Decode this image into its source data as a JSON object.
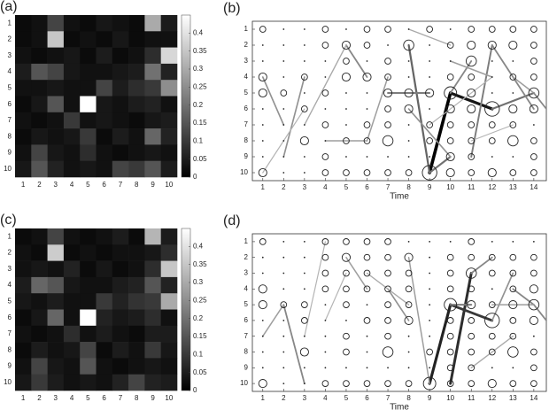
{
  "chart_data": [
    {
      "type": "heatmap",
      "panel_label": "(a)",
      "categories": [
        1,
        2,
        3,
        4,
        5,
        6,
        7,
        8,
        9,
        10
      ],
      "rows": [
        1,
        2,
        3,
        4,
        5,
        6,
        7,
        8,
        9,
        10
      ],
      "values": [
        [
          0.02,
          0.03,
          0.12,
          0.03,
          0.02,
          0.04,
          0.03,
          0.02,
          0.3,
          0.05
        ],
        [
          0.02,
          0.03,
          0.35,
          0.02,
          0.03,
          0.02,
          0.04,
          0.02,
          0.03,
          0.03
        ],
        [
          0.03,
          0.02,
          0.03,
          0.04,
          0.02,
          0.05,
          0.02,
          0.03,
          0.08,
          0.38
        ],
        [
          0.05,
          0.15,
          0.12,
          0.04,
          0.03,
          0.03,
          0.04,
          0.05,
          0.2,
          0.06
        ],
        [
          0.03,
          0.03,
          0.04,
          0.03,
          0.03,
          0.12,
          0.05,
          0.08,
          0.1,
          0.25
        ],
        [
          0.02,
          0.04,
          0.15,
          0.03,
          0.45,
          0.04,
          0.03,
          0.05,
          0.06,
          0.03
        ],
        [
          0.03,
          0.02,
          0.03,
          0.1,
          0.03,
          0.04,
          0.03,
          0.02,
          0.04,
          0.05
        ],
        [
          0.02,
          0.04,
          0.03,
          0.04,
          0.1,
          0.02,
          0.05,
          0.03,
          0.18,
          0.06
        ],
        [
          0.03,
          0.12,
          0.04,
          0.03,
          0.08,
          0.03,
          0.02,
          0.03,
          0.04,
          0.03
        ],
        [
          0.04,
          0.15,
          0.06,
          0.03,
          0.04,
          0.03,
          0.12,
          0.1,
          0.15,
          0.05
        ]
      ],
      "zlim": [
        0,
        0.45
      ],
      "zticks": [
        0,
        0.05,
        0.1,
        0.15,
        0.2,
        0.25,
        0.3,
        0.35,
        0.4
      ]
    },
    {
      "type": "network",
      "panel_label": "(b)",
      "xlabel": "Time",
      "xlim": [
        0.5,
        14.6
      ],
      "ylim": [
        0.5,
        10.5
      ],
      "y_inverted": true,
      "xticks": [
        1,
        2,
        3,
        4,
        5,
        6,
        7,
        8,
        9,
        10,
        11,
        12,
        13,
        14
      ],
      "yticks": [
        1,
        2,
        3,
        4,
        5,
        6,
        7,
        8,
        9,
        10
      ],
      "sizes": [
        [
          2,
          0,
          0,
          2,
          0,
          2,
          2,
          0,
          2,
          0,
          2,
          2,
          2,
          2
        ],
        [
          0,
          0,
          0,
          2,
          3,
          2,
          0,
          4,
          0,
          2,
          3,
          3,
          3,
          2
        ],
        [
          0,
          0,
          0,
          0,
          2,
          0,
          2,
          0,
          0,
          0,
          4,
          0,
          0,
          2
        ],
        [
          3,
          0,
          2,
          0,
          3,
          3,
          2,
          0,
          0,
          2,
          2,
          0,
          2,
          2
        ],
        [
          3,
          2,
          0,
          2,
          0,
          0,
          3,
          3,
          3,
          5,
          3,
          0,
          0,
          4
        ],
        [
          0,
          0,
          2,
          0,
          0,
          0,
          2,
          3,
          0,
          3,
          3,
          6,
          3,
          3
        ],
        [
          0,
          0,
          0,
          2,
          0,
          2,
          2,
          0,
          2,
          2,
          2,
          2,
          2,
          0
        ],
        [
          0,
          0,
          3,
          0,
          2,
          2,
          4,
          0,
          2,
          2,
          2,
          2,
          4,
          2
        ],
        [
          0,
          0,
          0,
          2,
          0,
          0,
          0,
          0,
          0,
          3,
          2,
          0,
          0,
          2
        ],
        [
          3,
          0,
          0,
          2,
          2,
          2,
          2,
          2,
          6,
          3,
          2,
          3,
          2,
          2
        ]
      ],
      "edges": [
        {
          "x": [
            9,
            10
          ],
          "y": [
            10,
            5
          ],
          "weight": 1
        },
        {
          "x": [
            10,
            12
          ],
          "y": [
            5,
            6
          ],
          "weight": 0.9
        },
        {
          "x": [
            8,
            9
          ],
          "y": [
            2,
            10
          ],
          "weight": 0.55
        },
        {
          "x": [
            9,
            10
          ],
          "y": [
            10,
            9
          ],
          "weight": 0.5
        },
        {
          "x": [
            7,
            9
          ],
          "y": [
            5,
            5
          ],
          "weight": 0.45
        },
        {
          "x": [
            12,
            14
          ],
          "y": [
            6,
            5
          ],
          "weight": 0.5
        },
        {
          "x": [
            10,
            11
          ],
          "y": [
            5,
            3
          ],
          "weight": 0.4
        },
        {
          "x": [
            11,
            12
          ],
          "y": [
            9,
            2
          ],
          "weight": 0.45
        },
        {
          "x": [
            1,
            2
          ],
          "y": [
            4,
            7
          ],
          "weight": 0.35
        },
        {
          "x": [
            2,
            3
          ],
          "y": [
            9,
            4
          ],
          "weight": 0.35
        },
        {
          "x": [
            5,
            6
          ],
          "y": [
            2,
            4
          ],
          "weight": 0.4
        },
        {
          "x": [
            8,
            10
          ],
          "y": [
            6,
            9
          ],
          "weight": 0.35
        },
        {
          "x": [
            12,
            14
          ],
          "y": [
            2,
            6
          ],
          "weight": 0.4
        },
        {
          "x": [
            6,
            7
          ],
          "y": [
            8,
            4
          ],
          "weight": 0.3
        },
        {
          "x": [
            3,
            5
          ],
          "y": [
            7,
            2
          ],
          "weight": 0.25
        },
        {
          "x": [
            10,
            12
          ],
          "y": [
            3,
            4
          ],
          "weight": 0.3
        },
        {
          "x": [
            8,
            10
          ],
          "y": [
            1,
            2
          ],
          "weight": 0.25
        },
        {
          "x": [
            13,
            14
          ],
          "y": [
            4,
            5
          ],
          "weight": 0.3
        },
        {
          "x": [
            4,
            6
          ],
          "y": [
            8,
            8
          ],
          "weight": 0.3
        },
        {
          "x": [
            11,
            13
          ],
          "y": [
            8,
            7
          ],
          "weight": 0.2
        },
        {
          "x": [
            1,
            3
          ],
          "y": [
            10,
            6
          ],
          "weight": 0.2
        },
        {
          "x": [
            9,
            12
          ],
          "y": [
            7,
            4
          ],
          "weight": 0.2
        },
        {
          "x": [
            14,
            14.6
          ],
          "y": [
            5,
            6
          ],
          "weight": 0.4
        }
      ]
    },
    {
      "type": "heatmap",
      "panel_label": "(c)",
      "categories": [
        1,
        2,
        3,
        4,
        5,
        6,
        7,
        8,
        9,
        10
      ],
      "rows": [
        1,
        2,
        3,
        4,
        5,
        6,
        7,
        8,
        9,
        10
      ],
      "values": [
        [
          0.02,
          0.03,
          0.12,
          0.03,
          0.02,
          0.03,
          0.05,
          0.02,
          0.32,
          0.05
        ],
        [
          0.03,
          0.02,
          0.36,
          0.02,
          0.03,
          0.02,
          0.03,
          0.03,
          0.04,
          0.08
        ],
        [
          0.03,
          0.04,
          0.03,
          0.06,
          0.02,
          0.04,
          0.02,
          0.03,
          0.08,
          0.35
        ],
        [
          0.05,
          0.18,
          0.15,
          0.04,
          0.03,
          0.03,
          0.05,
          0.06,
          0.15,
          0.06
        ],
        [
          0.04,
          0.03,
          0.05,
          0.03,
          0.03,
          0.1,
          0.06,
          0.09,
          0.1,
          0.3
        ],
        [
          0.02,
          0.04,
          0.18,
          0.03,
          0.45,
          0.06,
          0.04,
          0.05,
          0.08,
          0.03
        ],
        [
          0.03,
          0.02,
          0.03,
          0.08,
          0.03,
          0.05,
          0.03,
          0.02,
          0.05,
          0.05
        ],
        [
          0.02,
          0.05,
          0.03,
          0.04,
          0.12,
          0.02,
          0.05,
          0.03,
          0.1,
          0.04
        ],
        [
          0.03,
          0.12,
          0.04,
          0.03,
          0.15,
          0.03,
          0.02,
          0.03,
          0.04,
          0.03
        ],
        [
          0.04,
          0.1,
          0.05,
          0.03,
          0.04,
          0.03,
          0.06,
          0.12,
          0.06,
          0.05
        ]
      ],
      "zlim": [
        0,
        0.45
      ],
      "zticks": [
        0,
        0.05,
        0.1,
        0.15,
        0.2,
        0.25,
        0.3,
        0.35,
        0.4
      ]
    },
    {
      "type": "network",
      "panel_label": "(d)",
      "xlabel": "Time",
      "xlim": [
        0.5,
        14.6
      ],
      "ylim": [
        0.5,
        10.5
      ],
      "y_inverted": true,
      "xticks": [
        1,
        2,
        3,
        4,
        5,
        6,
        7,
        8,
        9,
        10,
        11,
        12,
        13,
        14
      ],
      "yticks": [
        1,
        2,
        3,
        4,
        5,
        6,
        7,
        8,
        9,
        10
      ],
      "sizes": [
        [
          2,
          0,
          0,
          2,
          2,
          2,
          2,
          0,
          0,
          0,
          2,
          0,
          0,
          0
        ],
        [
          0,
          0,
          0,
          2,
          3,
          2,
          2,
          3,
          0,
          2,
          2,
          2,
          2,
          2
        ],
        [
          0,
          0,
          0,
          2,
          2,
          2,
          2,
          2,
          0,
          2,
          4,
          2,
          2,
          2
        ],
        [
          3,
          0,
          0,
          2,
          2,
          2,
          2,
          2,
          0,
          2,
          2,
          0,
          2,
          3
        ],
        [
          3,
          2,
          2,
          0,
          2,
          0,
          2,
          2,
          0,
          5,
          3,
          2,
          3,
          4
        ],
        [
          0,
          0,
          2,
          0,
          0,
          2,
          2,
          3,
          0,
          2,
          2,
          6,
          2,
          3
        ],
        [
          0,
          0,
          0,
          0,
          2,
          0,
          2,
          0,
          0,
          2,
          2,
          2,
          2,
          0
        ],
        [
          0,
          0,
          3,
          0,
          2,
          0,
          4,
          0,
          2,
          2,
          2,
          2,
          4,
          2
        ],
        [
          0,
          0,
          0,
          0,
          0,
          0,
          0,
          0,
          0,
          2,
          2,
          0,
          0,
          2
        ],
        [
          3,
          0,
          0,
          2,
          2,
          2,
          2,
          2,
          5,
          2,
          2,
          3,
          2,
          2
        ]
      ],
      "edges": [
        {
          "x": [
            9,
            10
          ],
          "y": [
            10,
            5
          ],
          "weight": 0.85
        },
        {
          "x": [
            10,
            11
          ],
          "y": [
            10,
            3
          ],
          "weight": 0.8
        },
        {
          "x": [
            10,
            12
          ],
          "y": [
            5,
            6
          ],
          "weight": 0.75
        },
        {
          "x": [
            11,
            12
          ],
          "y": [
            3,
            2
          ],
          "weight": 0.4
        },
        {
          "x": [
            2,
            3
          ],
          "y": [
            5,
            10
          ],
          "weight": 0.4
        },
        {
          "x": [
            1,
            2
          ],
          "y": [
            7,
            5
          ],
          "weight": 0.3
        },
        {
          "x": [
            7,
            8
          ],
          "y": [
            4,
            6
          ],
          "weight": 0.35
        },
        {
          "x": [
            8,
            9
          ],
          "y": [
            2,
            10
          ],
          "weight": 0.3
        },
        {
          "x": [
            12,
            13
          ],
          "y": [
            6,
            3
          ],
          "weight": 0.35
        },
        {
          "x": [
            13,
            14
          ],
          "y": [
            4,
            5
          ],
          "weight": 0.4
        },
        {
          "x": [
            10,
            11
          ],
          "y": [
            5,
            5
          ],
          "weight": 0.45
        },
        {
          "x": [
            5,
            6
          ],
          "y": [
            2,
            4
          ],
          "weight": 0.3
        },
        {
          "x": [
            3,
            4
          ],
          "y": [
            7,
            1
          ],
          "weight": 0.2
        },
        {
          "x": [
            6,
            8
          ],
          "y": [
            3,
            5
          ],
          "weight": 0.25
        },
        {
          "x": [
            11,
            13
          ],
          "y": [
            9,
            7
          ],
          "weight": 0.25
        },
        {
          "x": [
            4,
            5
          ],
          "y": [
            6,
            3
          ],
          "weight": 0.2
        },
        {
          "x": [
            14,
            14.6
          ],
          "y": [
            5,
            6
          ],
          "weight": 0.4
        },
        {
          "x": [
            12,
            14
          ],
          "y": [
            5,
            5
          ],
          "weight": 0.3
        }
      ]
    }
  ]
}
